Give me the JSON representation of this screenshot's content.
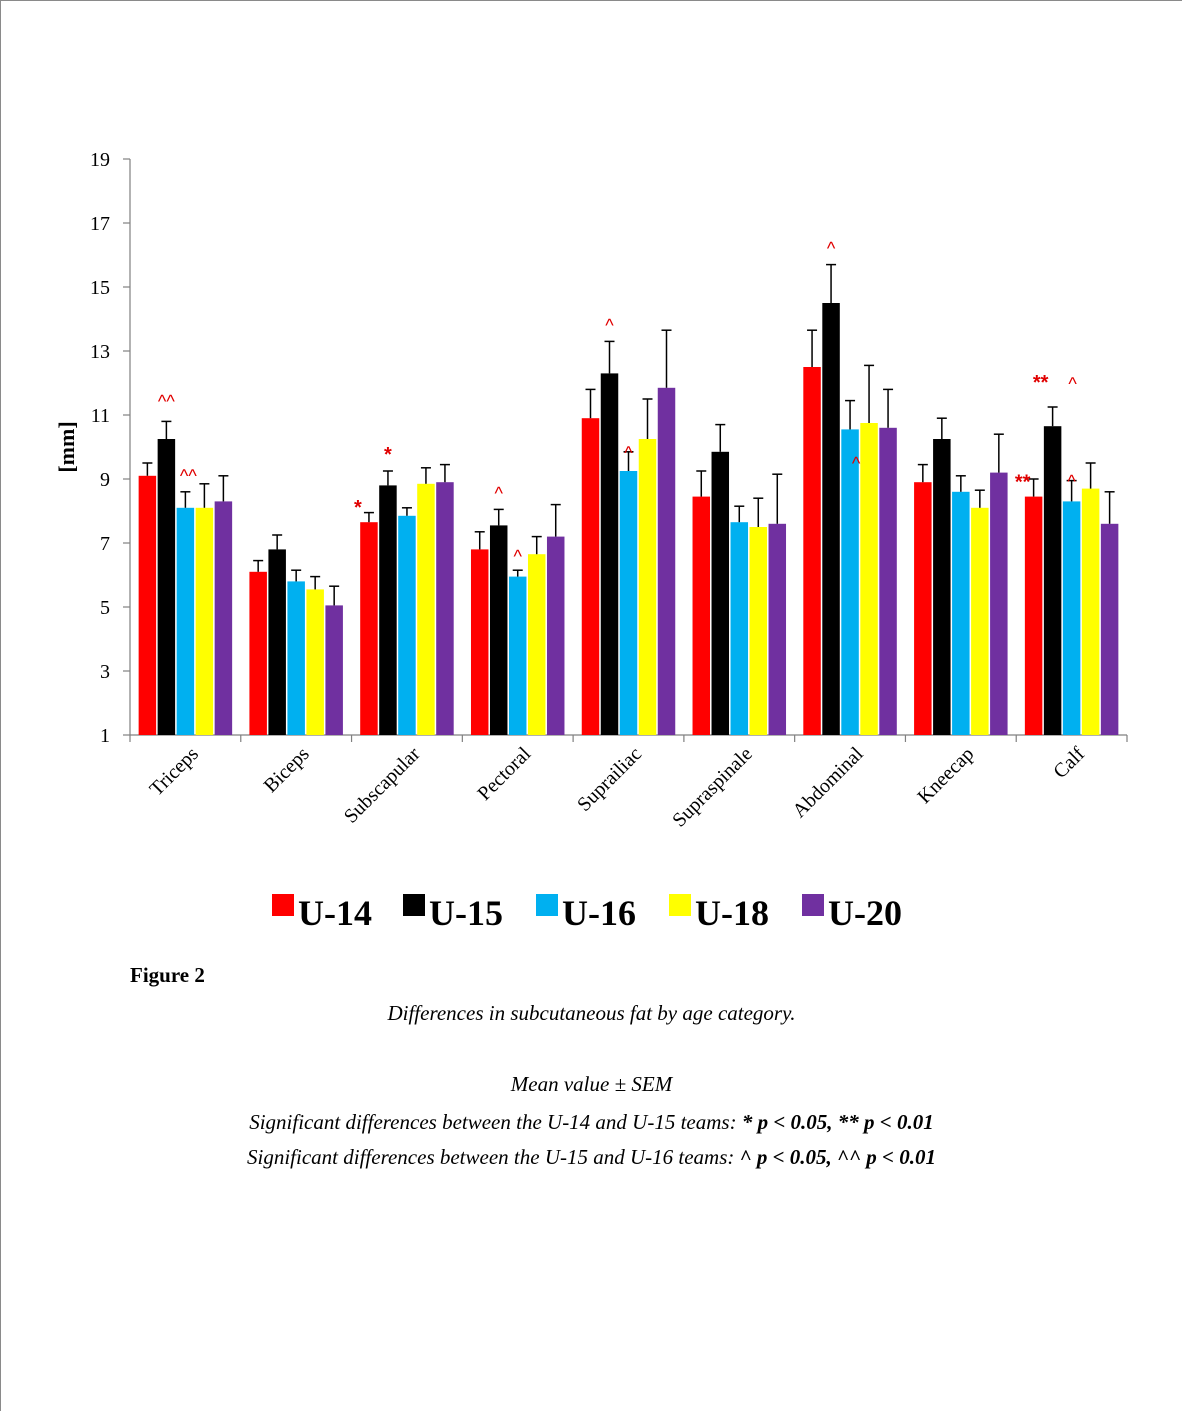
{
  "chart_data": {
    "type": "bar",
    "categories": [
      "Triceps",
      "Biceps",
      "Subscapular",
      "Pectoral",
      "Suprailiac",
      "Supraspinale",
      "Abdominal",
      "Kneecap",
      "Calf"
    ],
    "ylabel": "[mm]",
    "ylim": [
      1,
      19
    ],
    "yticks": [
      "1",
      "3",
      "5",
      "7",
      "9",
      "11",
      "13",
      "15",
      "17",
      "19"
    ],
    "legend_position": "bottom",
    "grid": false,
    "series": [
      {
        "name": "U-14",
        "color": "#ff0000",
        "values": [
          9.1,
          6.1,
          7.65,
          6.8,
          10.9,
          8.45,
          12.5,
          8.9,
          8.45
        ],
        "errors": [
          0.4,
          0.35,
          0.3,
          0.55,
          0.9,
          0.8,
          1.15,
          0.55,
          0.55
        ]
      },
      {
        "name": "U-15",
        "color": "#000000",
        "values": [
          10.25,
          6.8,
          8.8,
          7.55,
          12.3,
          9.85,
          14.5,
          10.25,
          10.65
        ],
        "errors": [
          0.55,
          0.45,
          0.45,
          0.5,
          1.0,
          0.85,
          1.2,
          0.65,
          0.6
        ]
      },
      {
        "name": "U-16",
        "color": "#00b0f0",
        "values": [
          8.1,
          5.8,
          7.85,
          5.95,
          9.25,
          7.65,
          10.55,
          8.6,
          8.3
        ],
        "errors": [
          0.5,
          0.35,
          0.25,
          0.2,
          0.6,
          0.5,
          0.9,
          0.5,
          0.65
        ]
      },
      {
        "name": "U-18",
        "color": "#ffff00",
        "values": [
          8.1,
          5.55,
          8.85,
          6.65,
          10.25,
          7.5,
          10.75,
          8.1,
          8.7
        ],
        "errors": [
          0.75,
          0.4,
          0.5,
          0.55,
          1.25,
          0.9,
          1.8,
          0.55,
          0.8
        ]
      },
      {
        "name": "U-20",
        "color": "#7030a0",
        "values": [
          8.3,
          5.05,
          8.9,
          7.2,
          11.85,
          7.6,
          10.6,
          9.2,
          7.6
        ],
        "errors": [
          0.8,
          0.6,
          0.55,
          1.0,
          1.8,
          1.55,
          1.2,
          1.2,
          1.0
        ]
      }
    ],
    "annotations": [
      {
        "category": "Triceps",
        "series": "U-15",
        "text": "^^"
      },
      {
        "category": "Triceps",
        "series": "U-16",
        "text": "^^"
      },
      {
        "category": "Subscapular",
        "series": "U-14",
        "text": "*"
      },
      {
        "category": "Subscapular",
        "series": "U-15",
        "text": "*"
      },
      {
        "category": "Pectoral",
        "series": "U-15",
        "text": "^"
      },
      {
        "category": "Pectoral",
        "series": "U-16",
        "text": "^"
      },
      {
        "category": "Suprailiac",
        "series": "U-15",
        "text": "^"
      },
      {
        "category": "Suprailiac",
        "series": "U-16",
        "text": "^"
      },
      {
        "category": "Abdominal",
        "series": "U-15",
        "text": "^"
      },
      {
        "category": "Abdominal",
        "series": "U-16",
        "text": "^"
      },
      {
        "category": "Calf",
        "series": "U-14",
        "text": "**"
      },
      {
        "category": "Calf",
        "series": "U-15",
        "text": "**"
      },
      {
        "category": "Calf",
        "series": "U-15",
        "text": "^"
      },
      {
        "category": "Calf",
        "series": "U-16",
        "text": "^"
      }
    ]
  },
  "caption": {
    "figure_label": "Figure 2",
    "title": "Differences in subcutaneous fat by age category.",
    "line1": "Mean value ± SEM",
    "line2_prefix": "Significant differences between the U-14 and U-15 teams:",
    "line2_stats": "* p < 0.05, ** p < 0.01",
    "line3_prefix": "Significant differences between the U-15 and U-16 teams:",
    "line3_stats": "^ p < 0.05, ^^ p < 0.01"
  }
}
